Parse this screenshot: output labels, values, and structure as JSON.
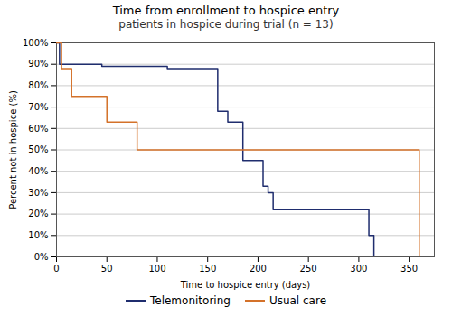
{
  "chart_data": {
    "type": "line",
    "title": "Time from enrollment to hospice entry",
    "subtitle": "patients in hospice during trial (n = 13)",
    "x_label": "Time to hospice entry (days)",
    "y_label": "Percent not in hospice (%)",
    "xlim": [
      0,
      375
    ],
    "ylim": [
      0,
      100
    ],
    "xticks": [
      0,
      50,
      100,
      150,
      200,
      250,
      300,
      350
    ],
    "yticks": [
      {
        "value": 0,
        "label": "0%"
      },
      {
        "value": 10,
        "label": "10%"
      },
      {
        "value": 20,
        "label": "20%"
      },
      {
        "value": 30,
        "label": "30%"
      },
      {
        "value": 40,
        "label": "40%"
      },
      {
        "value": 50,
        "label": "50%"
      },
      {
        "value": 60,
        "label": "60%"
      },
      {
        "value": 70,
        "label": "70%"
      },
      {
        "value": 80,
        "label": "80%"
      },
      {
        "value": 90,
        "label": "90%"
      },
      {
        "value": 100,
        "label": "100%"
      }
    ],
    "grid": "y",
    "legend": "bottom",
    "background_color": "#ffffff",
    "series": [
      {
        "name": "Telemonitoring",
        "color": "#1f2d6e",
        "x": [
          0,
          0,
          3,
          3,
          45,
          45,
          110,
          110,
          160,
          160,
          170,
          170,
          185,
          185,
          205,
          205,
          210,
          210,
          215,
          215,
          225,
          225,
          310,
          310,
          315,
          315
        ],
        "values": [
          100,
          100,
          100,
          90,
          90,
          89,
          89,
          88,
          88,
          68,
          68,
          63,
          63,
          45,
          45,
          33,
          33,
          30,
          30,
          22,
          22,
          22,
          22,
          10,
          10,
          0
        ]
      },
      {
        "name": "Usual care",
        "color": "#d4722a",
        "x": [
          0,
          0,
          5,
          5,
          15,
          15,
          50,
          50,
          80,
          80,
          105,
          105,
          340,
          340,
          360,
          360
        ],
        "values": [
          100,
          100,
          100,
          88,
          88,
          75,
          75,
          63,
          63,
          50,
          50,
          50,
          50,
          50,
          50,
          0
        ]
      }
    ]
  }
}
